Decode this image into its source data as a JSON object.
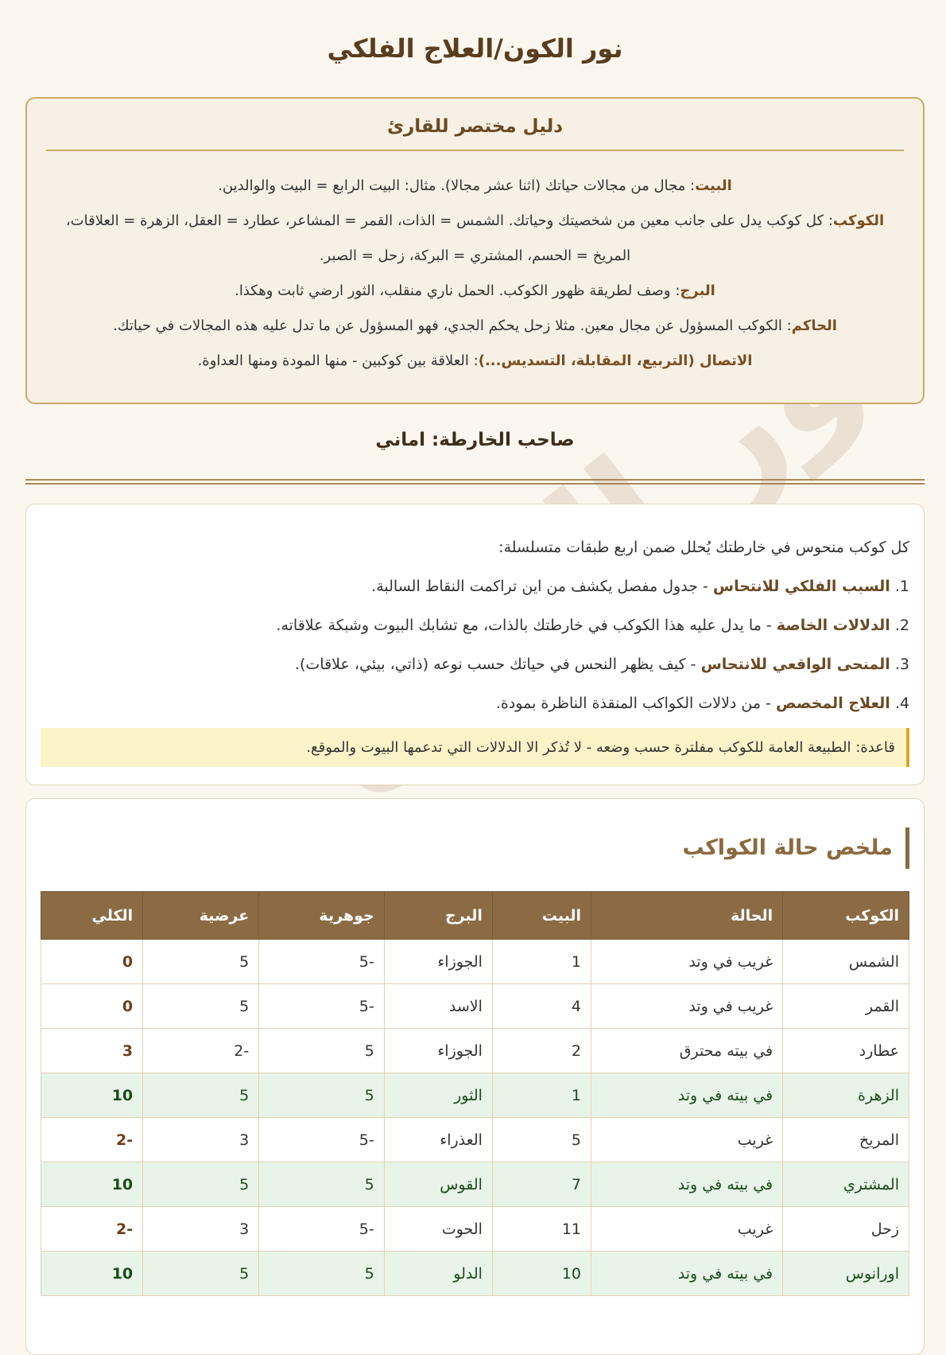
{
  "title": "نور الكون/العلاج الفلكي",
  "watermark": "نور الكون",
  "guide": {
    "heading": "دليل مختصر للقارئ",
    "items": [
      {
        "term": "البيت",
        "text": ": مجال من مجالات حياتك (اثنا عشر مجالا). مثال: البيت الرابع = البيت والوالدين."
      },
      {
        "term": "الكوكب",
        "text": ": كل كوكب يدل على جانب معين من شخصيتك وحياتك. الشمس = الذات، القمر = المشاعر، عطارد = العقل، الزهرة = العلاقات، المريخ = الحسم، المشتري = البركة، زحل = الصبر."
      },
      {
        "term": "البرج",
        "text": ": وصف لطريقة ظهور الكوكب. الحمل ناري منقلب، الثور ارضي ثابت وهكذا."
      },
      {
        "term": "الحاكم",
        "text": ": الكوكب المسؤول عن مجال معين. مثلا زحل يحكم الجدي، فهو المسؤول عن ما تدل عليه هذه المجالات في حياتك."
      },
      {
        "term": "الاتصال (التربيع، المقابلة، التسديس...)",
        "text": ": العلاقة بين كوكبين - منها المودة ومنها العداوة."
      }
    ]
  },
  "owner": "صاحب الخارطة: اماني",
  "intro": {
    "lead": "كل كوكب منحوس في خارطتك يُحلل ضمن اربع طبقات متسلسلة:",
    "layers": [
      {
        "num": "1.",
        "term": "السبب الفلكي للانتحاس",
        "text": " - جدول مفصل يكشف من اين تراكمت النقاط السالبة."
      },
      {
        "num": "2.",
        "term": "الدلالات الخاصة",
        "text": " - ما يدل عليه هذا الكوكب في خارطتك بالذات، مع تشابك البيوت وشبكة علاقاته."
      },
      {
        "num": "3.",
        "term": "المنحى الواقعي للانتحاس",
        "text": " - كيف يظهر النحس في حياتك حسب نوعه (ذاتي، بيئي، علاقات)."
      },
      {
        "num": "4.",
        "term": "العلاج المخصص",
        "text": " - من دلالات الكواكب المنقذة الناظرة بمودة."
      }
    ],
    "rule": "قاعدة: الطبيعة العامة للكوكب مفلترة حسب وضعه - لا تُذكر الا الدلالات التي تدعمها البيوت والموقع."
  },
  "summary": {
    "heading": "ملخص حالة الكواكب",
    "columns": [
      "الكوكب",
      "الحالة",
      "البيت",
      "البرج",
      "جوهرية",
      "عرضية",
      "الكلي"
    ],
    "rows": [
      {
        "good": false,
        "cells": [
          "الشمس",
          "غريب في وتد",
          "1",
          "الجوزاء",
          "-5",
          "5",
          "0"
        ]
      },
      {
        "good": false,
        "cells": [
          "القمر",
          "غريب في وتد",
          "4",
          "الاسد",
          "-5",
          "5",
          "0"
        ]
      },
      {
        "good": false,
        "cells": [
          "عطارد",
          "في بيته محترق",
          "2",
          "الجوزاء",
          "5",
          "-2",
          "3"
        ]
      },
      {
        "good": true,
        "cells": [
          "الزهرة",
          "في بيته في وتد",
          "1",
          "الثور",
          "5",
          "5",
          "10"
        ]
      },
      {
        "good": false,
        "cells": [
          "المريخ",
          "غريب",
          "5",
          "العذراء",
          "-5",
          "3",
          "-2"
        ]
      },
      {
        "good": true,
        "cells": [
          "المشتري",
          "في بيته في وتد",
          "7",
          "القوس",
          "5",
          "5",
          "10"
        ]
      },
      {
        "good": false,
        "cells": [
          "زحل",
          "غريب",
          "11",
          "الحوت",
          "-5",
          "3",
          "-2"
        ]
      },
      {
        "good": true,
        "cells": [
          "اورانوس",
          "في بيته في وتد",
          "10",
          "الدلو",
          "5",
          "5",
          "10"
        ]
      }
    ]
  },
  "colors": {
    "accent": "#8b6b44",
    "border": "#c9a96e",
    "good_row": "#e9f4e9",
    "rule_bg": "#fdf3c8"
  }
}
